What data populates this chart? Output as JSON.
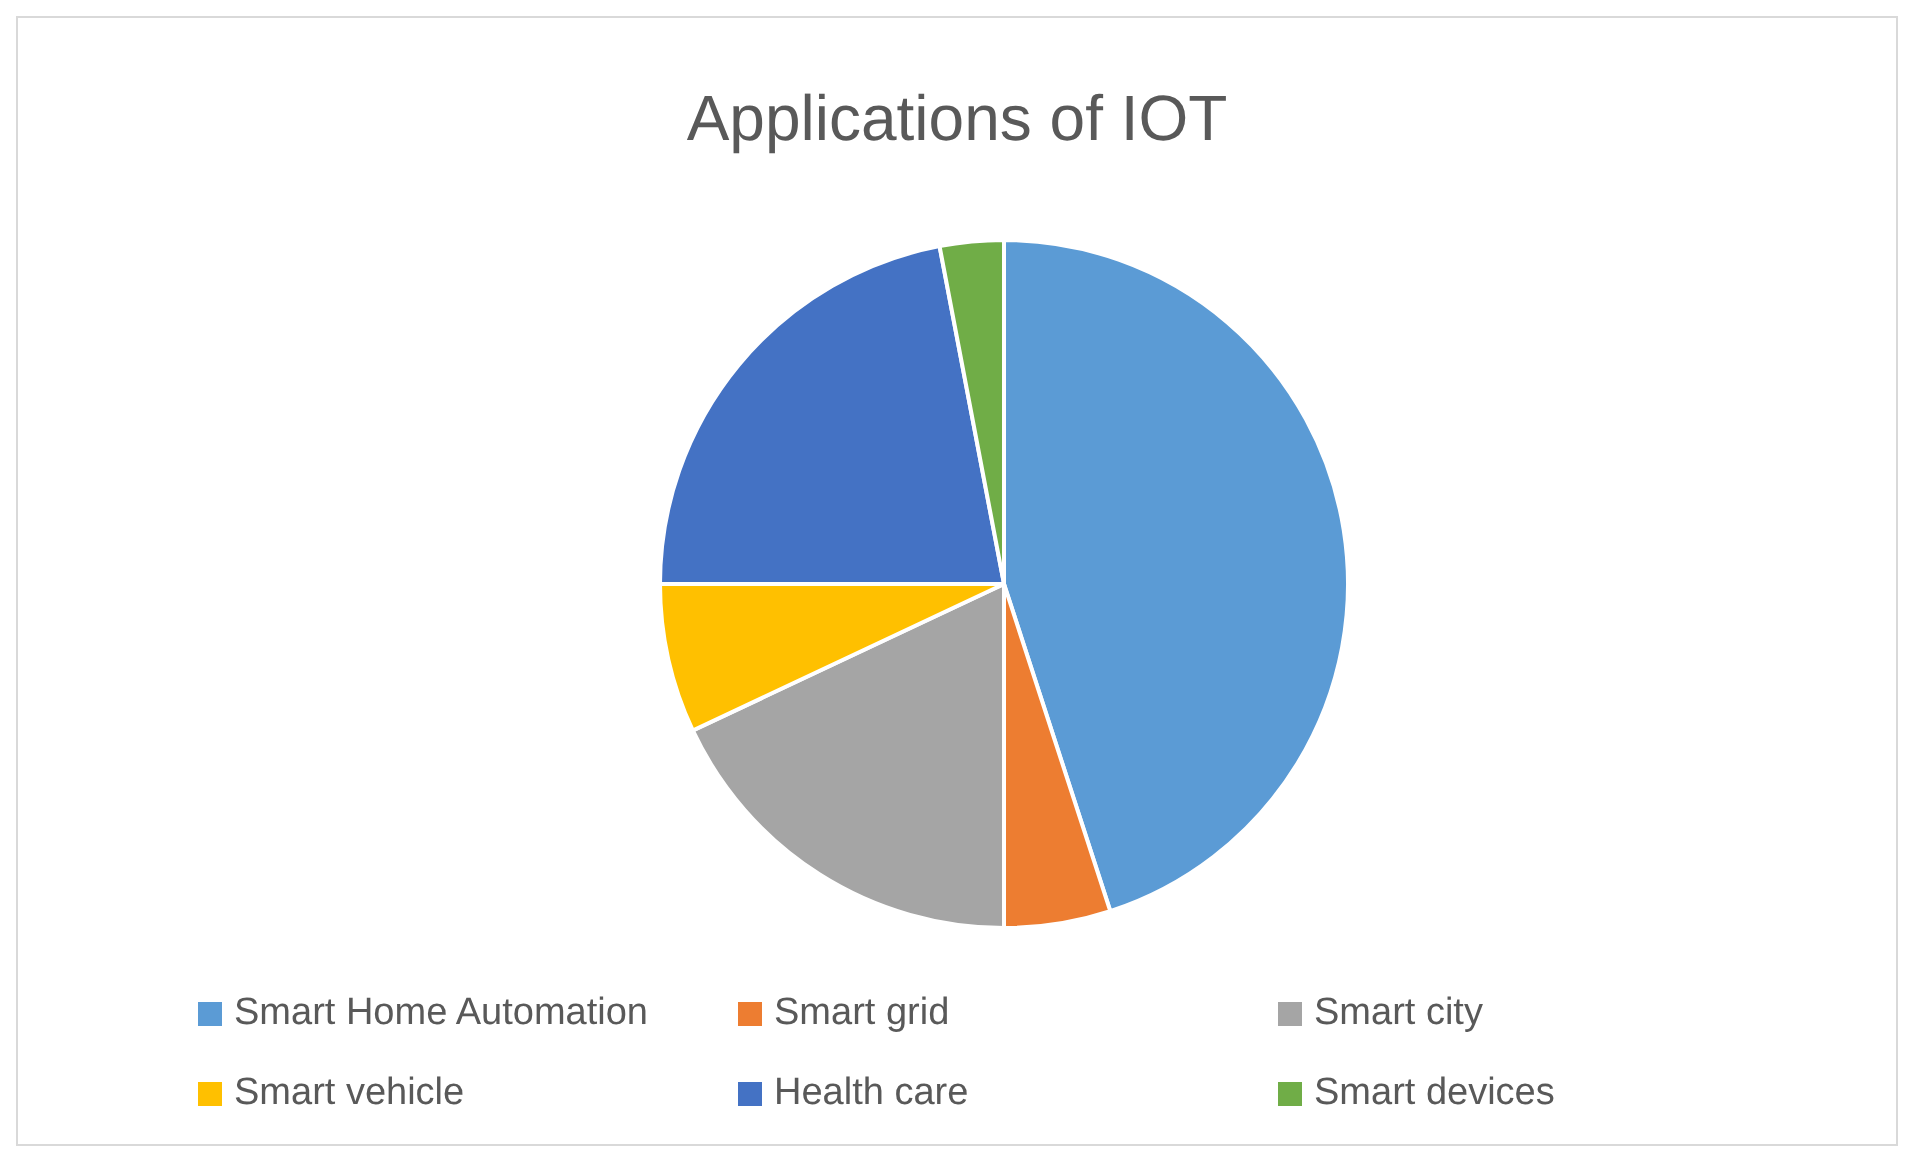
{
  "chart_data": {
    "type": "pie",
    "title": "Applications of IOT",
    "categories": [
      "Smart Home Automation",
      "Smart grid",
      "Smart city",
      "Smart vehicle",
      "Health care",
      "Smart devices"
    ],
    "values": [
      45,
      5,
      18,
      7,
      22,
      3
    ],
    "colors": [
      "#5b9bd5",
      "#ed7d31",
      "#a5a5a5",
      "#ffc000",
      "#4472c4",
      "#70ad47"
    ],
    "legend": "bottom"
  }
}
